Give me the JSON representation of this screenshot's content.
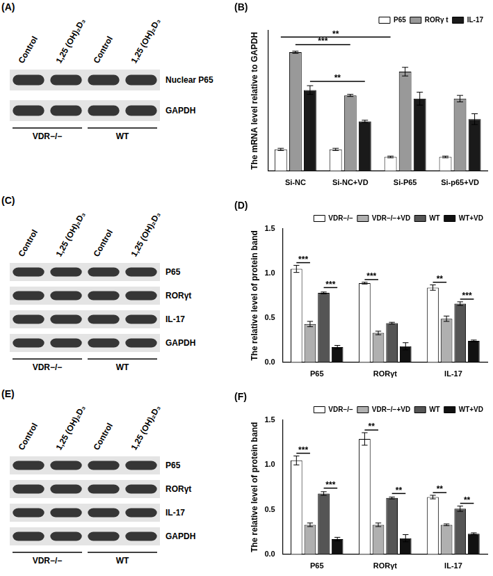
{
  "blots": [
    {
      "panel": "(A)",
      "lanes": [
        "Control",
        "1,25 (OH)₂D₃",
        "Control",
        "1,25 (OH)₂D₃"
      ],
      "rows": [
        "Nuclear P65",
        "GAPDH"
      ],
      "groups": [
        "VDR−/−",
        "WT"
      ]
    },
    {
      "panel": "(C)",
      "lanes": [
        "Control",
        "1,25 (OH)₂D₃",
        "Control",
        "1,25 (OH)₂D₃"
      ],
      "rows": [
        "P65",
        "RORγt",
        "IL-17",
        "GAPDH"
      ],
      "groups": [
        "VDR−/−",
        "WT"
      ]
    },
    {
      "panel": "(E)",
      "lanes": [
        "Control",
        "1,25 (OH)₂D₃",
        "Control",
        "1,25 (OH)₂D₃"
      ],
      "rows": [
        "P65",
        "RORγt",
        "IL-17",
        "GAPDH"
      ],
      "groups": [
        "VDR−/−",
        "WT"
      ]
    }
  ],
  "chart_data": [
    {
      "panel": "(B)",
      "type": "bar",
      "y_label": "The mRNA level relative to GAPDH",
      "categories": [
        "Si-NC",
        "Si-NC+VD",
        "Si-P65",
        "Si-p65+VD"
      ],
      "series": [
        {
          "name": "P65",
          "color": "#ffffff",
          "values": [
            1.0,
            1.0,
            0.65,
            0.65
          ],
          "errors": [
            0.05,
            0.05,
            0.04,
            0.04
          ]
        },
        {
          "name": "RORγ t",
          "color": "#999999",
          "values": [
            5.5,
            3.5,
            4.6,
            3.35
          ],
          "errors": [
            0.05,
            0.05,
            0.2,
            0.15
          ]
        },
        {
          "name": "IL-17",
          "color": "#1a1a1a",
          "values": [
            3.75,
            2.3,
            3.35,
            2.4
          ],
          "errors": [
            0.2,
            0.05,
            0.3,
            0.25
          ]
        }
      ],
      "ylim": [
        0,
        6.5
      ],
      "tick_labels": "x",
      "grid": false,
      "legend": "upper right",
      "annotations": [
        {
          "text": "**",
          "from": {
            "category": "Si-NC",
            "series": "P65"
          },
          "to": {
            "category": "Si-P65",
            "series": "P65"
          },
          "y": 6.2
        },
        {
          "text": "***",
          "from": {
            "category": "Si-NC",
            "series": "RORγ t"
          },
          "to": {
            "category": "Si-NC+VD",
            "series": "RORγ t"
          },
          "y": 5.85
        },
        {
          "text": "**",
          "from": {
            "category": "Si-NC",
            "series": "IL-17"
          },
          "to": {
            "category": "Si-NC+VD",
            "series": "IL-17"
          },
          "y": 4.15
        }
      ]
    },
    {
      "panel": "(D)",
      "type": "bar",
      "y_label": "The relative level of protein band",
      "categories": [
        "P65",
        "RORγt",
        "IL-17"
      ],
      "series": [
        {
          "name": "VDR−/−",
          "color": "#ffffff",
          "values": [
            1.05,
            0.89,
            0.84
          ],
          "errors": [
            0.04,
            0.01,
            0.03
          ]
        },
        {
          "name": "VDR−/−+VD",
          "color": "#b0b0b0",
          "values": [
            0.43,
            0.33,
            0.49
          ],
          "errors": [
            0.03,
            0.02,
            0.03
          ]
        },
        {
          "name": "WT",
          "color": "#555555",
          "values": [
            0.78,
            0.44,
            0.66
          ],
          "errors": [
            0.01,
            0.01,
            0.02
          ]
        },
        {
          "name": "WT+VD",
          "color": "#111111",
          "values": [
            0.17,
            0.18,
            0.24
          ],
          "errors": [
            0.02,
            0.04,
            0.01
          ]
        }
      ],
      "ylim": [
        0,
        1.5
      ],
      "yticks": [
        {
          "value": 0,
          "label": "0.0"
        },
        0.5,
        {
          "value": 1,
          "label": "1.0"
        },
        1.5
      ],
      "grid": false,
      "legend": "upper right",
      "annotations": [
        {
          "text": "***",
          "from": {
            "category": "P65",
            "series": "VDR−/−"
          },
          "to": {
            "category": "P65",
            "series": "VDR−/−+VD"
          },
          "y": 1.12
        },
        {
          "text": "***",
          "from": {
            "category": "P65",
            "series": "WT"
          },
          "to": {
            "category": "P65",
            "series": "WT+VD"
          },
          "y": 0.84
        },
        {
          "text": "***",
          "from": {
            "category": "RORγt",
            "series": "VDR−/−"
          },
          "to": {
            "category": "RORγt",
            "series": "VDR−/−+VD"
          },
          "y": 0.93
        },
        {
          "text": "**",
          "from": {
            "category": "IL-17",
            "series": "VDR−/−"
          },
          "to": {
            "category": "IL-17",
            "series": "VDR−/−+VD"
          },
          "y": 0.9
        },
        {
          "text": "***",
          "from": {
            "category": "IL-17",
            "series": "WT"
          },
          "to": {
            "category": "IL-17",
            "series": "WT+VD"
          },
          "y": 0.71
        }
      ]
    },
    {
      "panel": "(F)",
      "type": "bar",
      "y_label": "The relative level of protein band",
      "categories": [
        "P65",
        "RORγt",
        "IL-17"
      ],
      "series": [
        {
          "name": "VDR−/−",
          "color": "#ffffff",
          "values": [
            1.05,
            1.29,
            0.64
          ],
          "errors": [
            0.05,
            0.07,
            0.02
          ]
        },
        {
          "name": "VDR−/−+VD",
          "color": "#b0b0b0",
          "values": [
            0.33,
            0.33,
            0.33
          ],
          "errors": [
            0.02,
            0.02,
            0.01
          ]
        },
        {
          "name": "WT",
          "color": "#555555",
          "values": [
            0.68,
            0.63,
            0.51
          ],
          "errors": [
            0.02,
            0.01,
            0.03
          ]
        },
        {
          "name": "WT+VD",
          "color": "#111111",
          "values": [
            0.17,
            0.18,
            0.23
          ],
          "errors": [
            0.02,
            0.04,
            0.01
          ]
        }
      ],
      "ylim": [
        0,
        1.5
      ],
      "yticks": [
        {
          "value": 0,
          "label": "0.0"
        },
        0.5,
        {
          "value": 1,
          "label": "1.0"
        },
        1.5
      ],
      "grid": false,
      "legend": "upper right",
      "annotations": [
        {
          "text": "***",
          "from": {
            "category": "P65",
            "series": "VDR−/−"
          },
          "to": {
            "category": "P65",
            "series": "VDR−/−+VD"
          },
          "y": 1.13
        },
        {
          "text": "***",
          "from": {
            "category": "P65",
            "series": "WT"
          },
          "to": {
            "category": "P65",
            "series": "WT+VD"
          },
          "y": 0.74
        },
        {
          "text": "**",
          "from": {
            "category": "RORγt",
            "series": "VDR−/−"
          },
          "to": {
            "category": "RORγt",
            "series": "VDR−/−+VD"
          },
          "y": 1.39
        },
        {
          "text": "**",
          "from": {
            "category": "RORγt",
            "series": "WT"
          },
          "to": {
            "category": "RORγt",
            "series": "WT+VD"
          },
          "y": 0.68
        },
        {
          "text": "**",
          "from": {
            "category": "IL-17",
            "series": "VDR−/−"
          },
          "to": {
            "category": "IL-17",
            "series": "VDR−/−+VD"
          },
          "y": 0.69
        },
        {
          "text": "**",
          "from": {
            "category": "IL-17",
            "series": "WT"
          },
          "to": {
            "category": "IL-17",
            "series": "WT+VD"
          },
          "y": 0.57
        }
      ]
    }
  ]
}
